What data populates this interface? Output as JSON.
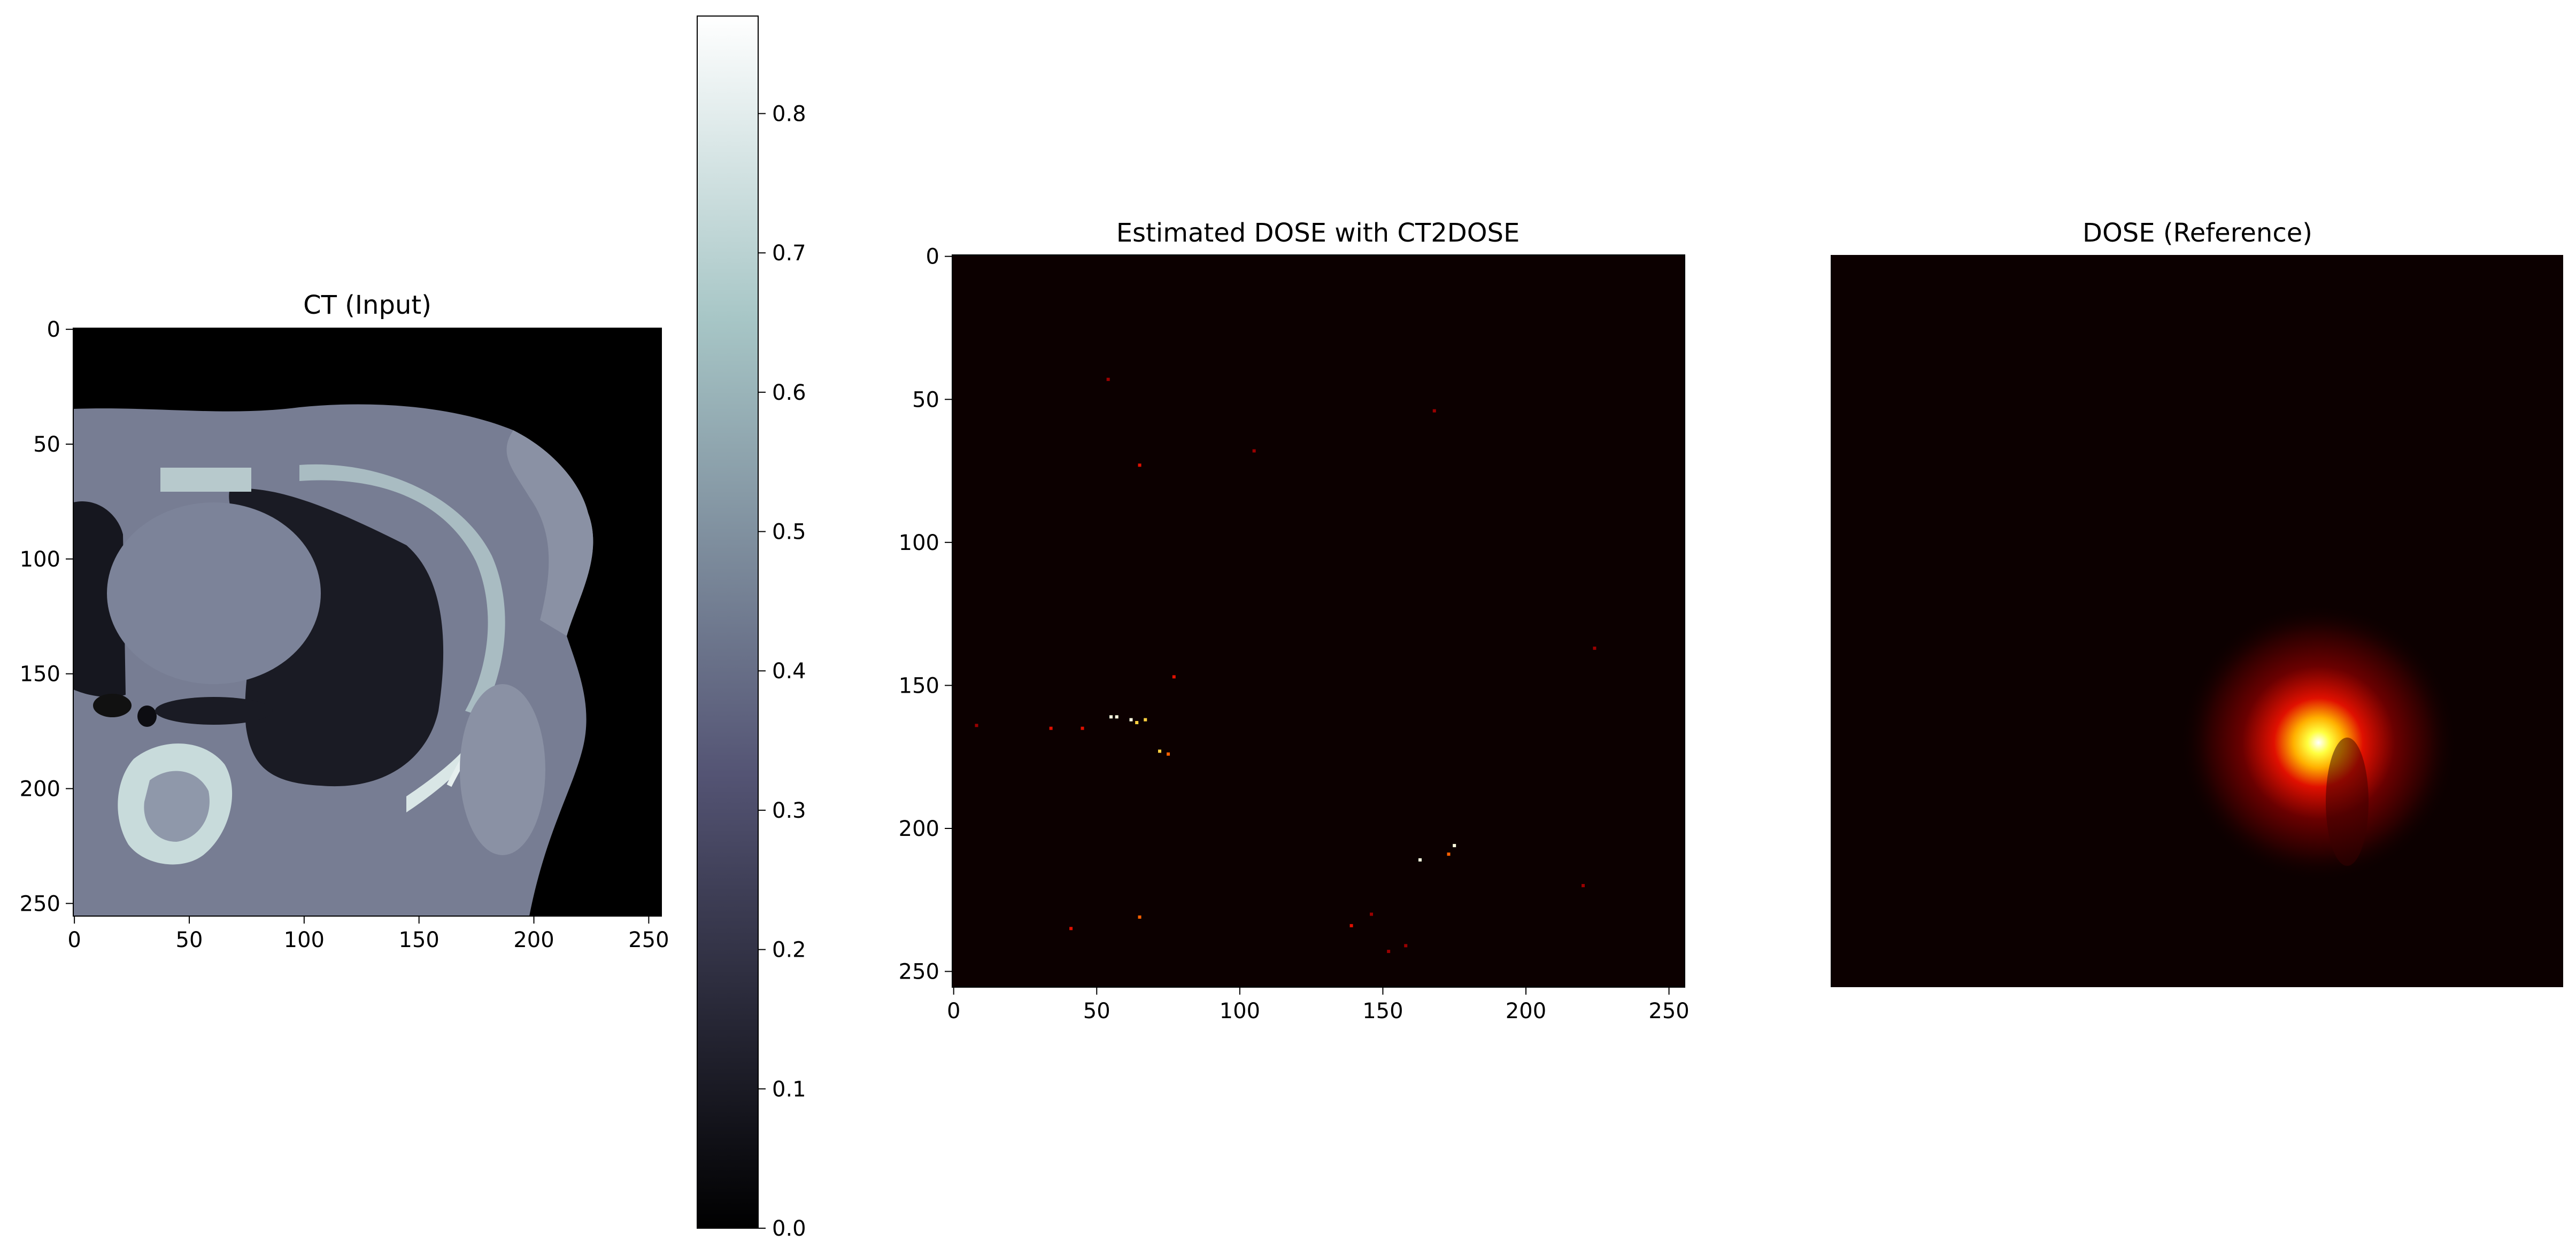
{
  "chart_data": [
    {
      "type": "heatmap",
      "title": "CT (Input)",
      "colormap": "bone",
      "x_ticks": [
        "0",
        "50",
        "100",
        "150",
        "200",
        "250"
      ],
      "y_ticks": [
        "0",
        "50",
        "100",
        "150",
        "200",
        "250"
      ],
      "xlim": [
        0,
        255
      ],
      "ylim": [
        255,
        0
      ],
      "colorbar": {
        "range": [
          0.0,
          0.87
        ],
        "ticks": [
          "0.0",
          "0.1",
          "0.2",
          "0.3",
          "0.4",
          "0.5",
          "0.6",
          "0.7",
          "0.8"
        ]
      }
    },
    {
      "type": "heatmap",
      "title": "Estimated DOSE with CT2DOSE",
      "colormap": "hot",
      "x_ticks": [
        "0",
        "50",
        "100",
        "150",
        "200",
        "250"
      ],
      "y_ticks": [
        "0",
        "50",
        "100",
        "150",
        "200",
        "250"
      ],
      "xlim": [
        0,
        255
      ],
      "ylim": [
        255,
        0
      ],
      "hot_spots": [
        {
          "x": 55,
          "y": 161,
          "v": 0.95
        },
        {
          "x": 57,
          "y": 161,
          "v": 0.9
        },
        {
          "x": 62,
          "y": 162,
          "v": 1.0
        },
        {
          "x": 64,
          "y": 163,
          "v": 0.85
        },
        {
          "x": 67,
          "y": 162,
          "v": 0.8
        },
        {
          "x": 72,
          "y": 173,
          "v": 0.75
        },
        {
          "x": 75,
          "y": 174,
          "v": 0.6
        },
        {
          "x": 34,
          "y": 165,
          "v": 0.5
        },
        {
          "x": 45,
          "y": 165,
          "v": 0.45
        },
        {
          "x": 77,
          "y": 147,
          "v": 0.4
        },
        {
          "x": 65,
          "y": 73,
          "v": 0.4
        },
        {
          "x": 105,
          "y": 68,
          "v": 0.35
        },
        {
          "x": 175,
          "y": 206,
          "v": 1.0
        },
        {
          "x": 163,
          "y": 211,
          "v": 0.95
        },
        {
          "x": 173,
          "y": 209,
          "v": 0.55
        },
        {
          "x": 65,
          "y": 231,
          "v": 0.55
        },
        {
          "x": 41,
          "y": 235,
          "v": 0.45
        },
        {
          "x": 139,
          "y": 234,
          "v": 0.4
        },
        {
          "x": 146,
          "y": 230,
          "v": 0.35
        },
        {
          "x": 152,
          "y": 243,
          "v": 0.35
        },
        {
          "x": 158,
          "y": 241,
          "v": 0.3
        },
        {
          "x": 54,
          "y": 43,
          "v": 0.25
        },
        {
          "x": 168,
          "y": 54,
          "v": 0.2
        },
        {
          "x": 224,
          "y": 137,
          "v": 0.25
        },
        {
          "x": 8,
          "y": 164,
          "v": 0.25
        },
        {
          "x": 220,
          "y": 220,
          "v": 0.2
        }
      ]
    },
    {
      "type": "heatmap",
      "title": "DOSE (Reference)",
      "colormap": "hot",
      "axes_visible": false,
      "hot_spot_center": {
        "x": 170,
        "y": 170
      }
    }
  ]
}
